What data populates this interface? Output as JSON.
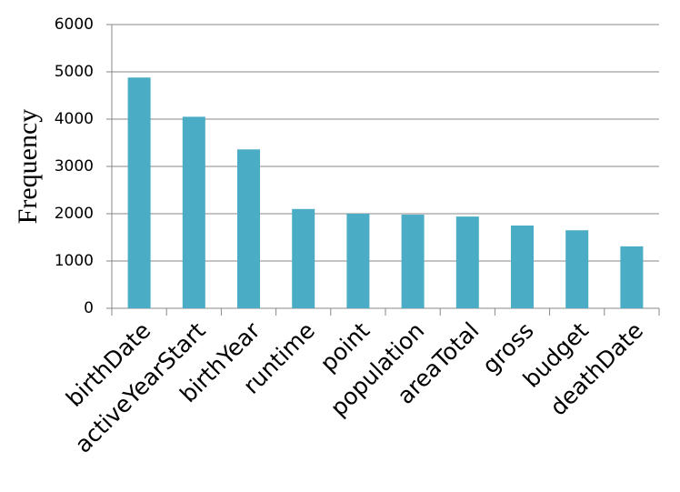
{
  "chart_data": {
    "type": "bar",
    "y_label": "Frequency",
    "categories": [
      "birthDate",
      "activeYearStart",
      "birthYear",
      "runtime",
      "point",
      "population",
      "areaTotal",
      "gross",
      "budget",
      "deathDate"
    ],
    "values": [
      4880,
      4050,
      3360,
      2100,
      2000,
      1980,
      1940,
      1750,
      1650,
      1310
    ],
    "color": "#4bacc6",
    "ylim": [
      0,
      6000
    ],
    "yticks": [
      0,
      1000,
      2000,
      3000,
      4000,
      5000,
      6000
    ],
    "grid": true
  }
}
